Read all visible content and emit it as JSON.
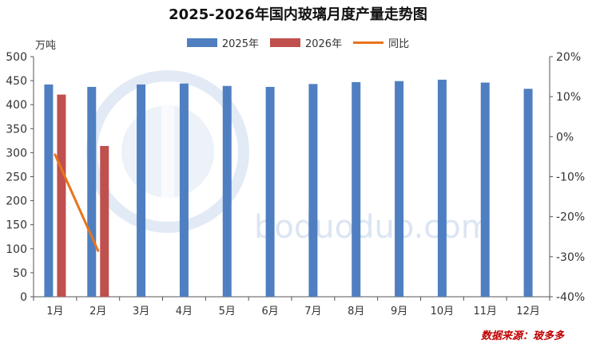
{
  "chart_data": {
    "type": "bar",
    "title": "2025-2026年国内玻璃月度产量走势图",
    "y_unit_label": "万吨",
    "source_text": "数据来源：玻多多",
    "watermark_text": "boduoduo.com",
    "categories": [
      "1月",
      "2月",
      "3月",
      "4月",
      "5月",
      "6月",
      "7月",
      "8月",
      "9月",
      "10月",
      "11月",
      "12月"
    ],
    "series": [
      {
        "name": "2025年",
        "kind": "bar",
        "color": "#4f7fc0",
        "values": [
          442,
          437,
          442,
          444,
          439,
          437,
          443,
          447,
          449,
          452,
          446,
          433
        ]
      },
      {
        "name": "2026年",
        "kind": "bar",
        "color": "#c0504d",
        "values": [
          421,
          314,
          null,
          null,
          null,
          null,
          null,
          null,
          null,
          null,
          null,
          null
        ]
      },
      {
        "name": "同比",
        "kind": "line",
        "axis": "right",
        "color": "#e8741c",
        "values": [
          -4.5,
          -28.5,
          null,
          null,
          null,
          null,
          null,
          null,
          null,
          null,
          null,
          null
        ]
      }
    ],
    "ylim": [
      0,
      500
    ],
    "y_ticks": [
      0,
      50,
      100,
      150,
      200,
      250,
      300,
      350,
      400,
      450,
      500
    ],
    "y2lim": [
      -40,
      20
    ],
    "y2_ticks": [
      "-40%",
      "-30%",
      "-20%",
      "-10%",
      "0%",
      "10%",
      "20%"
    ],
    "legend_position": "top-center",
    "grid": false
  }
}
